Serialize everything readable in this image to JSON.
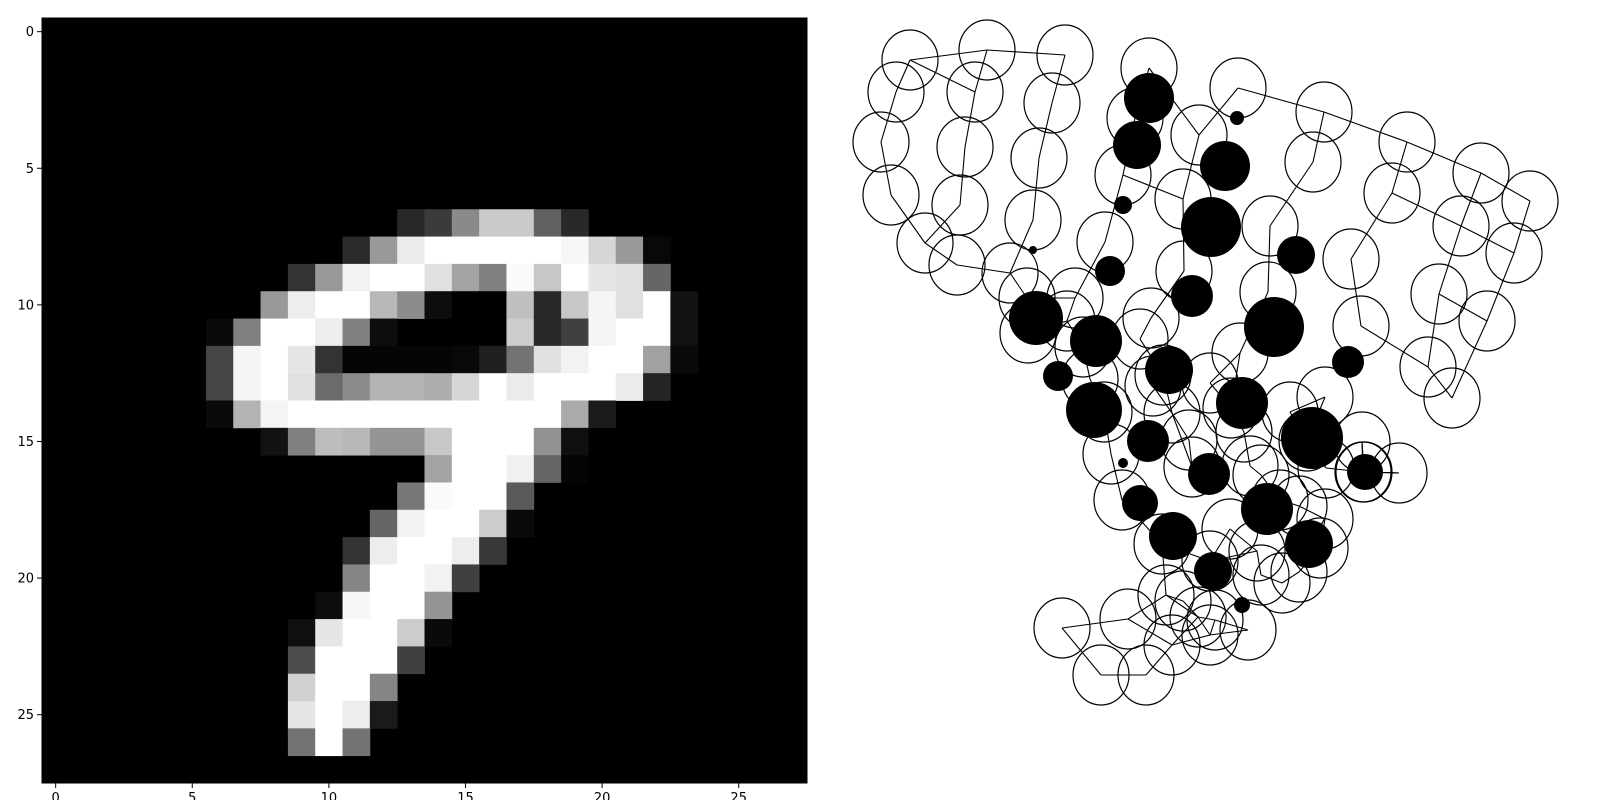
{
  "chart_data": [
    {
      "type": "heatmap",
      "title": "",
      "xlabel": "",
      "ylabel": "",
      "colormap": "gray",
      "background": "#000000",
      "xlim": [
        -0.5,
        27.5
      ],
      "ylim": [
        27.5,
        -0.5
      ],
      "x_ticks": [
        0,
        5,
        10,
        15,
        20,
        25
      ],
      "y_ticks": [
        0,
        5,
        10,
        15,
        20,
        25
      ],
      "x_tick_labels": [
        "0",
        "5",
        "10",
        "15",
        "20",
        "25"
      ],
      "y_tick_labels": [
        "0",
        "5",
        "10",
        "15",
        "20",
        "25"
      ],
      "pixels": [
        {
          "row": 7,
          "values": {
            "13": 0.16,
            "14": 0.23,
            "15": 0.54,
            "16": 0.79,
            "17": 0.79,
            "18": 0.38,
            "19": 0.16
          }
        },
        {
          "row": 8,
          "values": {
            "11": 0.17,
            "12": 0.6,
            "13": 0.92,
            "14": 1,
            "15": 1,
            "16": 1,
            "17": 1,
            "18": 1,
            "19": 0.97,
            "20": 0.84,
            "21": 0.6,
            "22": 0.03
          }
        },
        {
          "row": 9,
          "values": {
            "9": 0.2,
            "10": 0.6,
            "11": 0.95,
            "12": 1,
            "13": 1,
            "14": 0.88,
            "15": 0.64,
            "16": 0.5,
            "17": 0.98,
            "18": 0.78,
            "19": 1,
            "20": 0.9,
            "21": 0.88,
            "22": 0.4
          }
        },
        {
          "row": 10,
          "values": {
            "8": 0.6,
            "9": 0.93,
            "10": 1,
            "11": 1,
            "12": 0.72,
            "13": 0.55,
            "14": 0.05,
            "15": 0,
            "16": 0,
            "17": 0.75,
            "18": 0.16,
            "19": 0.78,
            "20": 0.96,
            "21": 0.88,
            "22": 1,
            "23": 0.07
          }
        },
        {
          "row": 11,
          "values": {
            "6": 0.04,
            "7": 0.5,
            "8": 1,
            "9": 1,
            "10": 0.93,
            "11": 0.5,
            "12": 0.05,
            "17": 0.8,
            "18": 0.16,
            "19": 0.25,
            "20": 0.96,
            "21": 1,
            "22": 1,
            "23": 0.07
          }
        },
        {
          "row": 12,
          "values": {
            "6": 0.27,
            "7": 0.96,
            "8": 1,
            "9": 0.9,
            "10": 0.2,
            "11": 0.02,
            "12": 0.02,
            "13": 0.02,
            "14": 0.02,
            "15": 0.03,
            "16": 0.12,
            "17": 0.45,
            "18": 0.88,
            "19": 0.95,
            "20": 1,
            "21": 1,
            "22": 0.63,
            "23": 0.04
          }
        },
        {
          "row": 13,
          "values": {
            "6": 0.27,
            "7": 0.96,
            "8": 1,
            "9": 0.88,
            "10": 0.42,
            "11": 0.55,
            "12": 0.7,
            "13": 0.7,
            "14": 0.68,
            "15": 0.84,
            "16": 1,
            "17": 0.92,
            "18": 1,
            "19": 1,
            "20": 1,
            "21": 0.92,
            "22": 0.14
          }
        },
        {
          "row": 14,
          "values": {
            "6": 0.04,
            "7": 0.7,
            "8": 0.96,
            "9": 1,
            "10": 1,
            "11": 1,
            "12": 1,
            "13": 1,
            "14": 1,
            "15": 1,
            "16": 1,
            "17": 1,
            "18": 1,
            "19": 0.67,
            "20": 0.1
          }
        },
        {
          "row": 15,
          "values": {
            "8": 0.07,
            "9": 0.5,
            "10": 0.74,
            "11": 0.72,
            "12": 0.58,
            "13": 0.58,
            "14": 0.78,
            "15": 1,
            "16": 1,
            "17": 1,
            "18": 0.57,
            "19": 0.06
          }
        },
        {
          "row": 16,
          "values": {
            "14": 0.64,
            "15": 1,
            "16": 1,
            "17": 0.94,
            "18": 0.4,
            "19": 0.02
          }
        },
        {
          "row": 17,
          "values": {
            "13": 0.47,
            "14": 0.98,
            "15": 1,
            "16": 1,
            "17": 0.35
          }
        },
        {
          "row": 18,
          "values": {
            "12": 0.4,
            "13": 0.95,
            "14": 1,
            "15": 1,
            "16": 0.8,
            "17": 0.04
          }
        },
        {
          "row": 19,
          "values": {
            "11": 0.2,
            "12": 0.93,
            "13": 1,
            "14": 1,
            "15": 0.93,
            "16": 0.22
          }
        },
        {
          "row": 20,
          "values": {
            "11": 0.52,
            "12": 1,
            "13": 1,
            "14": 0.95,
            "15": 0.25
          }
        },
        {
          "row": 21,
          "values": {
            "10": 0.05,
            "11": 0.97,
            "12": 1,
            "13": 1,
            "14": 0.58
          }
        },
        {
          "row": 22,
          "values": {
            "9": 0.06,
            "10": 0.9,
            "11": 1,
            "12": 1,
            "13": 0.8,
            "14": 0.04
          }
        },
        {
          "row": 23,
          "values": {
            "9": 0.3,
            "10": 1,
            "11": 1,
            "12": 1,
            "13": 0.25
          }
        },
        {
          "row": 24,
          "values": {
            "9": 0.82,
            "10": 1,
            "11": 1,
            "12": 0.52
          }
        },
        {
          "row": 25,
          "values": {
            "9": 0.9,
            "10": 1,
            "11": 0.93,
            "12": 0.1
          }
        },
        {
          "row": 26,
          "values": {
            "9": 0.45,
            "10": 1,
            "11": 0.45
          }
        }
      ]
    },
    {
      "type": "scatter",
      "title": "",
      "xlabel": "",
      "ylabel": "",
      "axes_visible": false,
      "rings": [
        [
          70,
          60
        ],
        [
          147,
          50
        ],
        [
          225,
          55
        ],
        [
          309,
          68
        ],
        [
          398,
          88
        ],
        [
          484,
          112
        ],
        [
          567,
          142
        ],
        [
          641,
          173
        ],
        [
          690,
          201
        ],
        [
          56,
          92
        ],
        [
          135,
          92
        ],
        [
          212,
          103
        ],
        [
          295,
          118
        ],
        [
          359,
          135
        ],
        [
          473,
          162
        ],
        [
          552,
          193
        ],
        [
          621,
          226
        ],
        [
          674,
          253
        ],
        [
          41,
          142
        ],
        [
          125,
          147
        ],
        [
          199,
          158
        ],
        [
          283,
          175
        ],
        [
          343,
          199
        ],
        [
          430,
          226
        ],
        [
          511,
          259
        ],
        [
          599,
          294
        ],
        [
          647,
          321
        ],
        [
          51,
          195
        ],
        [
          120,
          205
        ],
        [
          193,
          220
        ],
        [
          265,
          242
        ],
        [
          344,
          271
        ],
        [
          428,
          292
        ],
        [
          521,
          326
        ],
        [
          588,
          367
        ],
        [
          612,
          398
        ],
        [
          85,
          243
        ],
        [
          117,
          265
        ],
        [
          170,
          273
        ],
        [
          235,
          298
        ],
        [
          311,
          318
        ],
        [
          400,
          353
        ],
        [
          485,
          397
        ],
        [
          522,
          442
        ],
        [
          187,
          298
        ],
        [
          227,
          321
        ],
        [
          300,
          339
        ],
        [
          370,
          383
        ],
        [
          450,
          412
        ],
        [
          523,
          472
        ],
        [
          559,
          473
        ],
        [
          188,
          333
        ],
        [
          243,
          347
        ],
        [
          323,
          375
        ],
        [
          391,
          408
        ],
        [
          467,
          441
        ],
        [
          524,
          472
        ],
        [
          250,
          379
        ],
        [
          313,
          386
        ],
        [
          332,
          413
        ],
        [
          404,
          432
        ],
        [
          486,
          468
        ],
        [
          264,
          412
        ],
        [
          349,
          440
        ],
        [
          410,
          466
        ],
        [
          459,
          506
        ],
        [
          480,
          548
        ],
        [
          271,
          454
        ],
        [
          352,
          467
        ],
        [
          421,
          475
        ],
        [
          440,
          500
        ],
        [
          485,
          519
        ],
        [
          282,
          500
        ],
        [
          322,
          544
        ],
        [
          390,
          529
        ],
        [
          417,
          551
        ],
        [
          459,
          572
        ],
        [
          326,
          595
        ],
        [
          370,
          561
        ],
        [
          421,
          575
        ],
        [
          442,
          583
        ],
        [
          343,
          601
        ],
        [
          375,
          620
        ],
        [
          370,
          635
        ],
        [
          408,
          630
        ],
        [
          222,
          628
        ],
        [
          288,
          619
        ],
        [
          332,
          645
        ],
        [
          358,
          617
        ],
        [
          261,
          675
        ],
        [
          306,
          675
        ]
      ],
      "points": [
        {
          "x": 309,
          "y": 98,
          "size": 25
        },
        {
          "x": 397,
          "y": 118,
          "size": 7
        },
        {
          "x": 297,
          "y": 145,
          "size": 24
        },
        {
          "x": 385,
          "y": 166,
          "size": 25
        },
        {
          "x": 283,
          "y": 205,
          "size": 9
        },
        {
          "x": 371,
          "y": 227,
          "size": 30
        },
        {
          "x": 456,
          "y": 255,
          "size": 19
        },
        {
          "x": 193,
          "y": 250,
          "size": 4
        },
        {
          "x": 270,
          "y": 271,
          "size": 15
        },
        {
          "x": 352,
          "y": 296,
          "size": 21
        },
        {
          "x": 196,
          "y": 318,
          "size": 27
        },
        {
          "x": 434,
          "y": 327,
          "size": 30
        },
        {
          "x": 256,
          "y": 341,
          "size": 26
        },
        {
          "x": 508,
          "y": 362,
          "size": 16
        },
        {
          "x": 218,
          "y": 376,
          "size": 15
        },
        {
          "x": 329,
          "y": 370,
          "size": 24
        },
        {
          "x": 254,
          "y": 410,
          "size": 28
        },
        {
          "x": 402,
          "y": 403,
          "size": 26
        },
        {
          "x": 472,
          "y": 438,
          "size": 31
        },
        {
          "x": 308,
          "y": 441,
          "size": 21
        },
        {
          "x": 283,
          "y": 463,
          "size": 5
        },
        {
          "x": 369,
          "y": 474,
          "size": 21
        },
        {
          "x": 525,
          "y": 472,
          "size": 18
        },
        {
          "x": 300,
          "y": 503,
          "size": 18
        },
        {
          "x": 427,
          "y": 509,
          "size": 26
        },
        {
          "x": 333,
          "y": 536,
          "size": 24
        },
        {
          "x": 469,
          "y": 544,
          "size": 24
        },
        {
          "x": 373,
          "y": 571,
          "size": 19
        },
        {
          "x": 402,
          "y": 605,
          "size": 8
        }
      ]
    }
  ]
}
